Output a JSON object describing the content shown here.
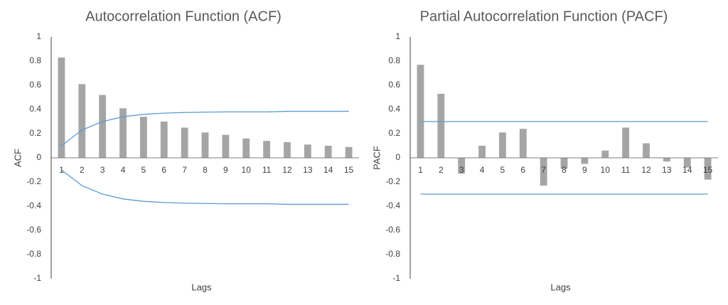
{
  "chart_data": [
    {
      "type": "bar",
      "title": "Autocorrelation Function (ACF)",
      "y_label": "ACF",
      "x_label": "Lags",
      "categories": [
        "1",
        "2",
        "3",
        "4",
        "5",
        "6",
        "7",
        "8",
        "9",
        "10",
        "11",
        "12",
        "13",
        "14",
        "15"
      ],
      "series": [
        {
          "type": "bar",
          "color": "#a5a5a5",
          "values": [
            0.83,
            0.61,
            0.52,
            0.41,
            0.34,
            0.3,
            0.25,
            0.21,
            0.19,
            0.16,
            0.14,
            0.13,
            0.11,
            0.1,
            0.09
          ]
        },
        {
          "type": "line",
          "color": "#5b9bd5",
          "values": [
            0.1,
            0.23,
            0.3,
            0.34,
            0.36,
            0.37,
            0.375,
            0.378,
            0.38,
            0.38,
            0.38,
            0.385,
            0.385,
            0.385,
            0.385
          ]
        },
        {
          "type": "line",
          "color": "#5b9bd5",
          "values": [
            -0.1,
            -0.23,
            -0.3,
            -0.34,
            -0.36,
            -0.37,
            -0.375,
            -0.378,
            -0.38,
            -0.38,
            -0.38,
            -0.385,
            -0.385,
            -0.385,
            -0.385
          ]
        }
      ],
      "ylim": [
        -1,
        1
      ],
      "yticks": [
        -1,
        -0.8,
        -0.6,
        -0.4,
        -0.2,
        0,
        0.2,
        0.4,
        0.6,
        0.8,
        1
      ]
    },
    {
      "type": "bar",
      "title": "Partial Autocorrelation Function (PACF)",
      "y_label": "PACF",
      "x_label": "Lags",
      "categories": [
        "1",
        "2",
        "3",
        "4",
        "5",
        "6",
        "7",
        "8",
        "9",
        "10",
        "11",
        "12",
        "13",
        "14",
        "15"
      ],
      "series": [
        {
          "type": "bar",
          "color": "#a5a5a5",
          "values": [
            0.77,
            0.53,
            -0.13,
            0.1,
            0.21,
            0.24,
            -0.23,
            -0.09,
            -0.05,
            0.06,
            0.25,
            0.12,
            -0.03,
            -0.08,
            -0.18
          ]
        },
        {
          "type": "line",
          "color": "#5b9bd5",
          "values": [
            0.3,
            0.3,
            0.3,
            0.3,
            0.3,
            0.3,
            0.3,
            0.3,
            0.3,
            0.3,
            0.3,
            0.3,
            0.3,
            0.3,
            0.3
          ]
        },
        {
          "type": "line",
          "color": "#5b9bd5",
          "values": [
            -0.3,
            -0.3,
            -0.3,
            -0.3,
            -0.3,
            -0.3,
            -0.3,
            -0.3,
            -0.3,
            -0.3,
            -0.3,
            -0.3,
            -0.3,
            -0.3,
            -0.3
          ]
        }
      ],
      "ylim": [
        -1,
        1
      ],
      "yticks": [
        -1,
        -0.8,
        -0.6,
        -0.4,
        -0.2,
        0,
        0.2,
        0.4,
        0.6,
        0.8,
        1
      ]
    }
  ]
}
